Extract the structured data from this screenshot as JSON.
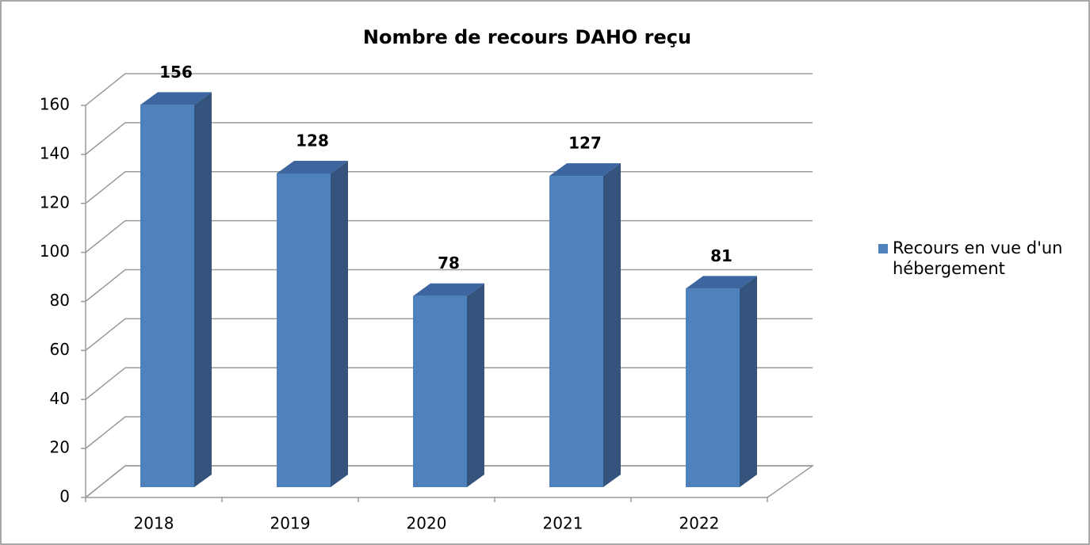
{
  "chart_data": {
    "type": "bar3d",
    "title": "Nombre de recours DAHO reçu",
    "categories": [
      "2018",
      "2019",
      "2020",
      "2021",
      "2022"
    ],
    "series": [
      {
        "name": "Recours en vue d'un hébergement",
        "color": "#4f81bd",
        "values": [
          156,
          128,
          78,
          127,
          81
        ]
      }
    ],
    "ylim": [
      0,
      160
    ],
    "yticks": [
      0,
      20,
      40,
      60,
      80,
      100,
      120,
      140,
      160
    ],
    "grid": true,
    "legend": "right"
  }
}
